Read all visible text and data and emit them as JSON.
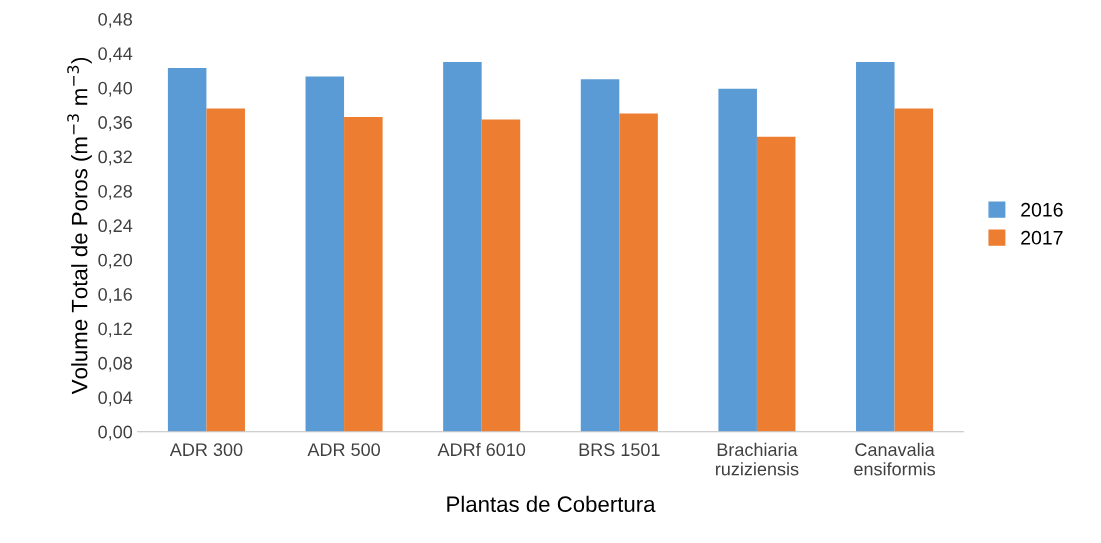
{
  "chart_data": {
    "type": "bar",
    "xlabel": "Plantas de Cobertura",
    "ylabel": "Volume Total de Poros (m$^{−3}$ m$^{−3}$)",
    "categories": [
      "ADR 300",
      "ADR 500",
      "ADRf 6010",
      "BRS 1501",
      "Brachiaria\nruziziensis",
      "Canavalia\nensiformis"
    ],
    "series": [
      {
        "name": "2016",
        "color": "#5b9bd5",
        "values": [
          0.423,
          0.413,
          0.43,
          0.41,
          0.399,
          0.43
        ]
      },
      {
        "name": "2017",
        "color": "#ed7d31",
        "values": [
          0.376,
          0.366,
          0.363,
          0.37,
          0.343,
          0.376
        ]
      }
    ],
    "ylim": [
      0,
      0.48
    ],
    "yticks": [
      {
        "value": 0,
        "label": "0,00"
      },
      {
        "value": 0.04,
        "label": "0,04"
      },
      {
        "value": 0.08,
        "label": "0,08"
      },
      {
        "value": 0.12,
        "label": "0,12"
      },
      {
        "value": 0.16,
        "label": "0,16"
      },
      {
        "value": 0.2,
        "label": "0,20"
      },
      {
        "value": 0.24,
        "label": "0,24"
      },
      {
        "value": 0.28,
        "label": "0,28"
      },
      {
        "value": 0.32,
        "label": "0,32"
      },
      {
        "value": 0.36,
        "label": "0,36"
      },
      {
        "value": 0.4,
        "label": "0,40"
      },
      {
        "value": 0.44,
        "label": "0,44"
      },
      {
        "value": 0.48,
        "label": "0,48"
      }
    ],
    "grid": false,
    "legend": "right"
  }
}
